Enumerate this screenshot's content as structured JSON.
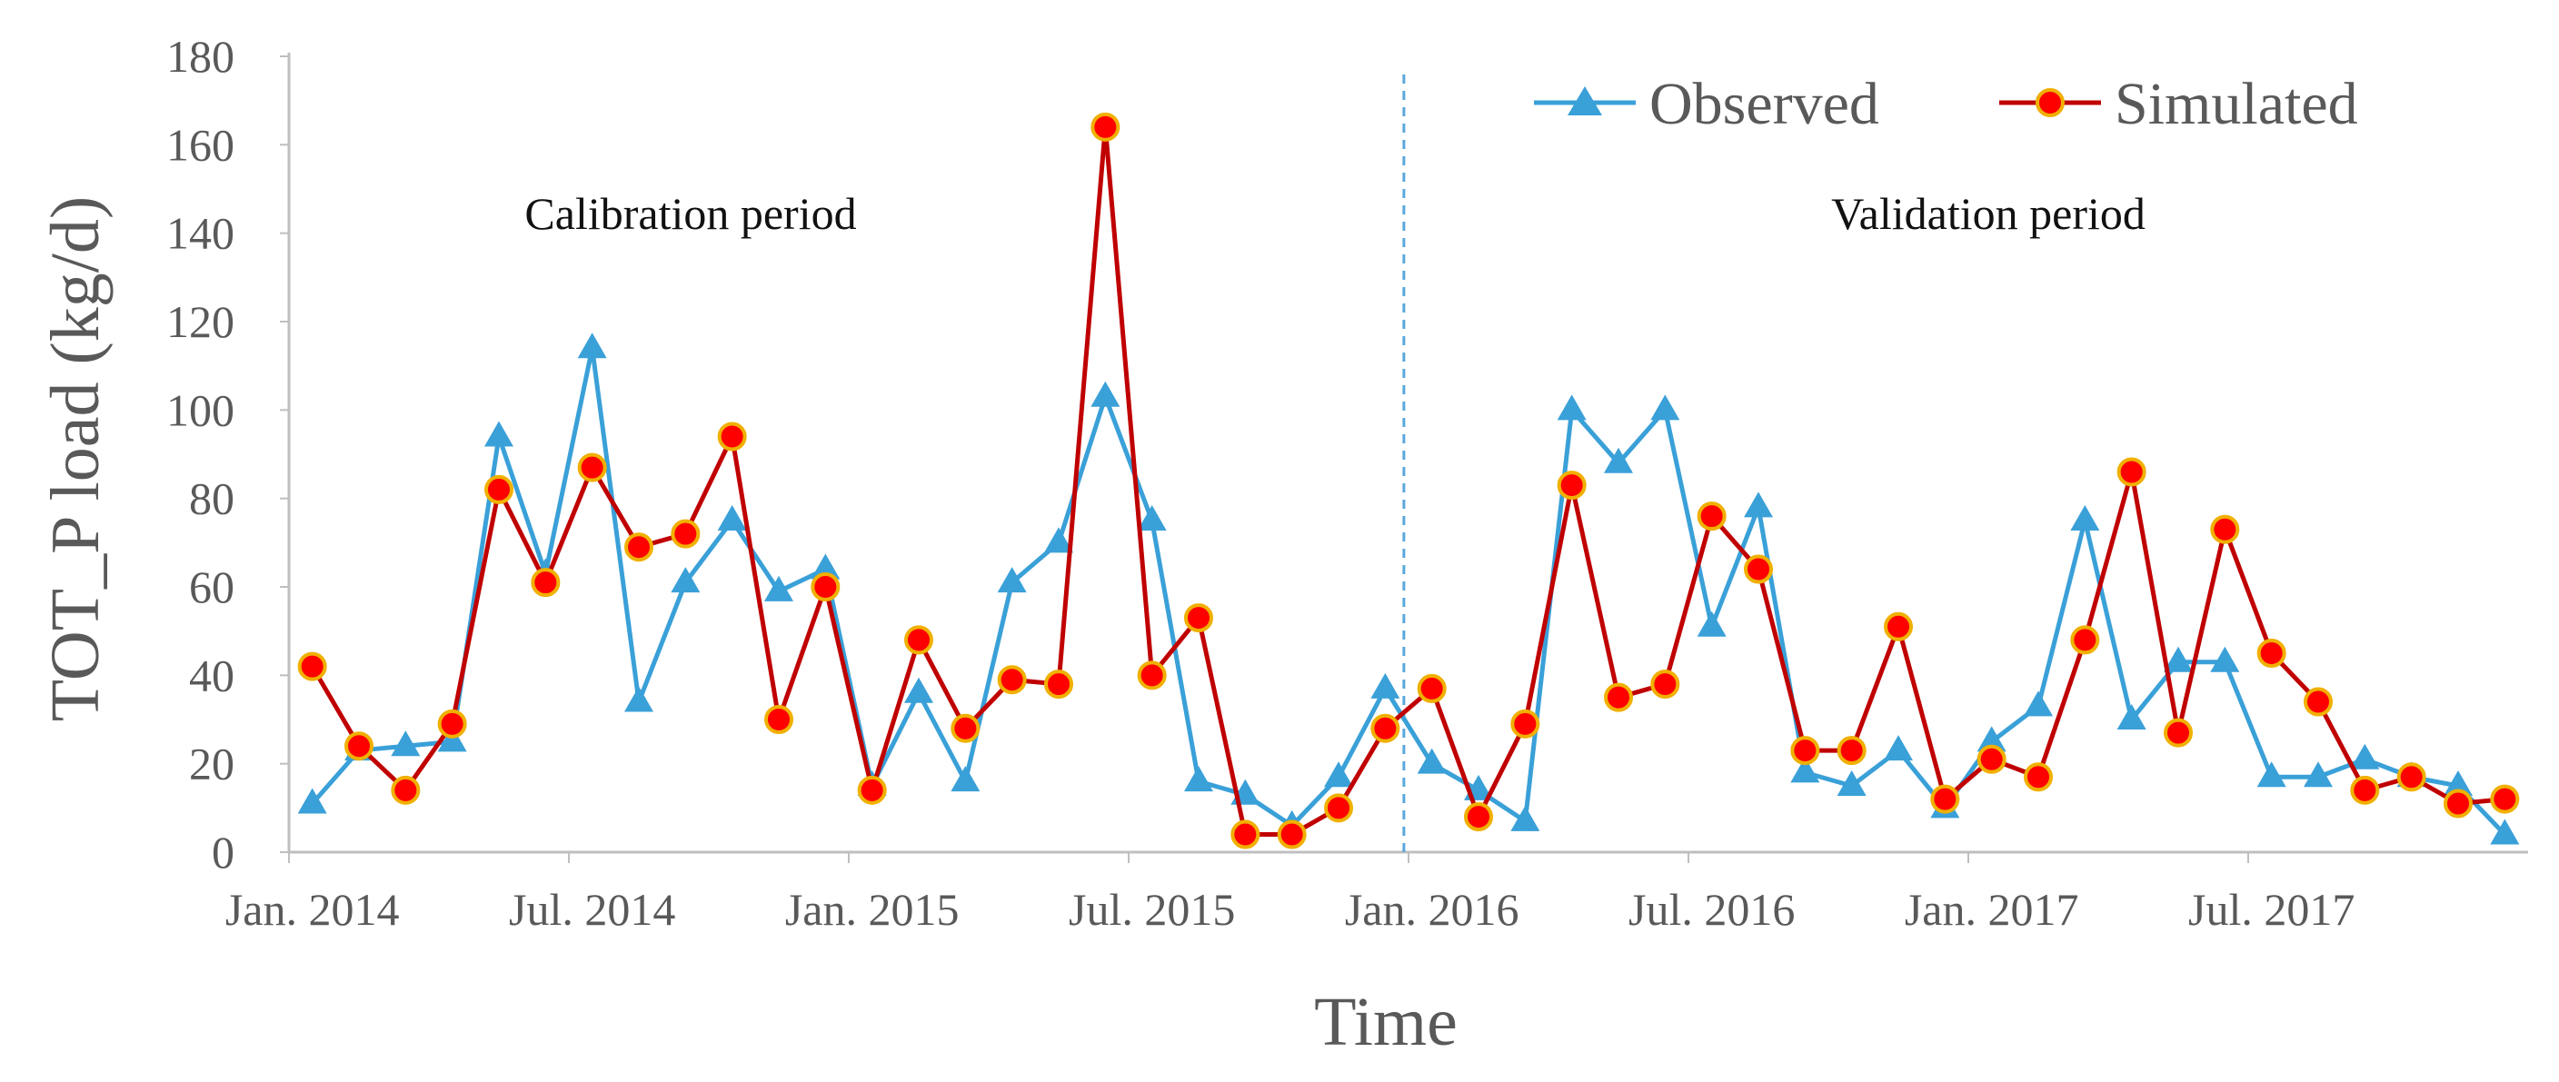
{
  "chart_data": {
    "type": "line",
    "title": "",
    "xlabel": "Time",
    "ylabel": "TOT_P load (kg/d)",
    "ylim": [
      0,
      180
    ],
    "yticks": [
      0,
      20,
      40,
      60,
      80,
      100,
      120,
      140,
      160,
      180
    ],
    "x_tick_labels": [
      "Jan. 2014",
      "Jul. 2014",
      "Jan. 2015",
      "Jul. 2015",
      "Jan. 2016",
      "Jul. 2016",
      "Jan. 2017",
      "Jul. 2017"
    ],
    "x_tick_month_index": [
      0,
      6,
      12,
      18,
      24,
      30,
      36,
      42
    ],
    "x_domain_months": [
      -0.5,
      47.5
    ],
    "grid": false,
    "legend_position": "top-right",
    "divider_month_index": 23.4,
    "annotations": [
      "Calibration period",
      "Validation period"
    ],
    "series": [
      {
        "name": "Observed",
        "color": "#3aa0d8",
        "marker": "triangle",
        "values": [
          11,
          23,
          24,
          25,
          94,
          63,
          114,
          34,
          61,
          75,
          59,
          64,
          15,
          36,
          16,
          61,
          70,
          103,
          75,
          16,
          13,
          6,
          17,
          37,
          20,
          14,
          7,
          100,
          88,
          100,
          51,
          78,
          18,
          15,
          23,
          10,
          25,
          33,
          75,
          30,
          43,
          43,
          17,
          17,
          21,
          17,
          15,
          4
        ]
      },
      {
        "name": "Simulated",
        "color": "#c00000",
        "marker_fill": "#ff0000",
        "marker_edge": "#f0b000",
        "marker": "circle",
        "values": [
          42,
          24,
          14,
          29,
          82,
          61,
          87,
          69,
          72,
          94,
          30,
          60,
          14,
          48,
          28,
          39,
          38,
          164,
          40,
          53,
          4,
          4,
          10,
          28,
          37,
          8,
          29,
          83,
          35,
          38,
          76,
          64,
          23,
          23,
          51,
          12,
          21,
          17,
          48,
          86,
          27,
          73,
          45,
          34,
          14,
          17,
          11,
          12
        ]
      }
    ]
  }
}
